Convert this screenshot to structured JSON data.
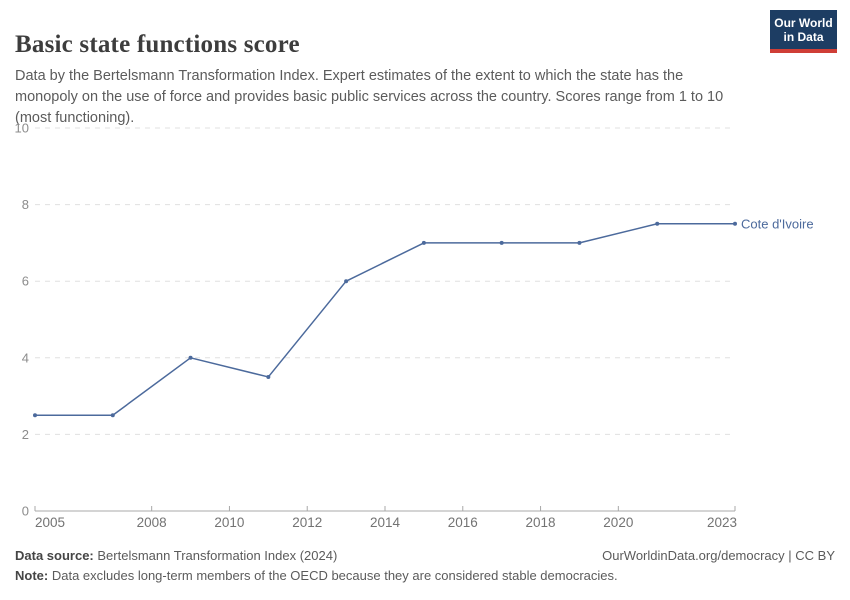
{
  "header": {
    "title": "Basic state functions score",
    "subtitle": "Data by the Bertelsmann Transformation Index. Expert estimates of the extent to which the state has the monopoly on the use of force and provides basic public services across the country. Scores range from 1 to 10 (most functioning).",
    "logo": {
      "line1": "Our World",
      "line2": "in Data",
      "background_color": "#1d3d63",
      "bar_color": "#cf3e36"
    }
  },
  "chart_data": {
    "type": "line",
    "title": "Basic state functions score",
    "xlabel": "",
    "ylabel": "",
    "xlim": [
      2005,
      2023
    ],
    "ylim": [
      0,
      10
    ],
    "x_ticks": [
      2005,
      2008,
      2010,
      2012,
      2014,
      2016,
      2018,
      2020,
      2023
    ],
    "y_ticks": [
      0,
      2,
      4,
      6,
      8,
      10
    ],
    "grid": "horizontal-dashed",
    "legend_position": "end-of-line-label",
    "series": [
      {
        "name": "Cote d'Ivoire",
        "color": "#4c6a9c",
        "x": [
          2005,
          2007,
          2009,
          2011,
          2013,
          2015,
          2017,
          2019,
          2021,
          2023
        ],
        "values": [
          2.5,
          2.5,
          4.0,
          3.5,
          6.0,
          7.0,
          7.0,
          7.0,
          7.5,
          7.5
        ]
      }
    ],
    "colors": {
      "grid_line": "#e0e0e0",
      "axis_line": "#a8a8a8",
      "x_tick_label": "#737373",
      "y_tick_label": "#8c8c8c"
    }
  },
  "footer": {
    "source_label": "Data source:",
    "source_text": "Bertelsmann Transformation Index (2024)",
    "right_text": "OurWorldinData.org/democracy | CC BY",
    "note_label": "Note:",
    "note_text": "Data excludes long-term members of the OECD because they are considered stable democracies."
  }
}
